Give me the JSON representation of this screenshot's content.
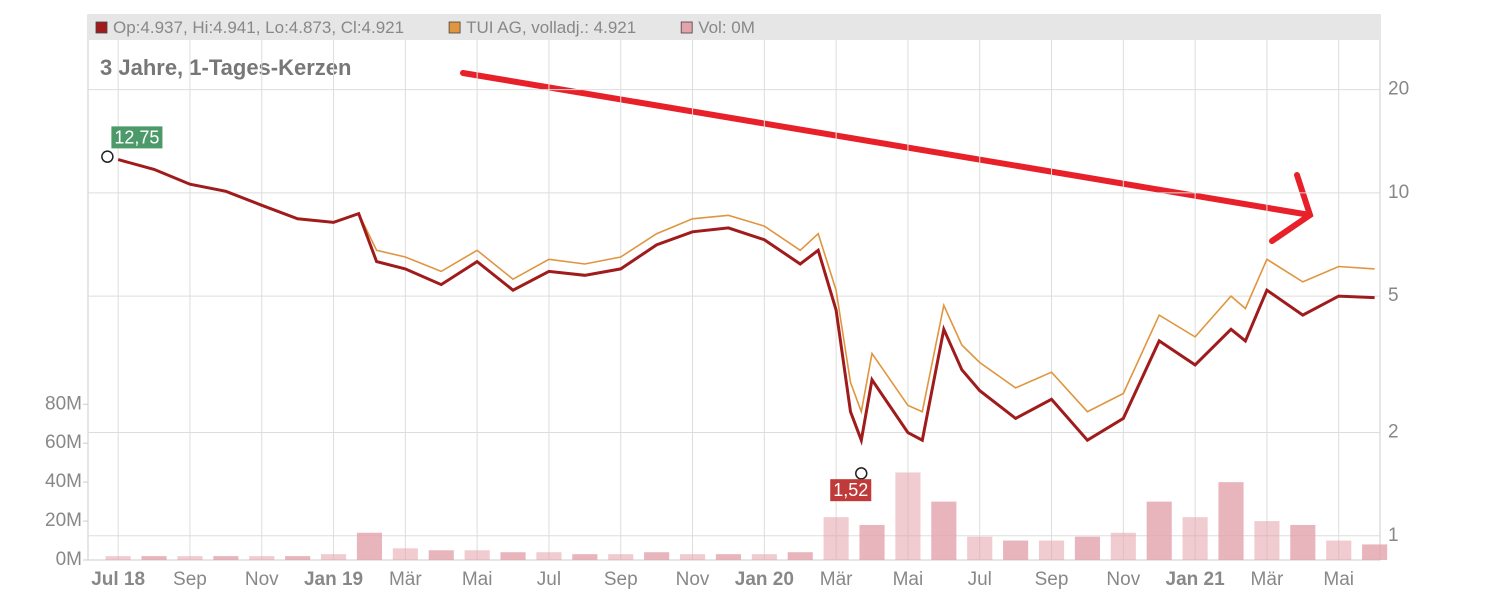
{
  "chart_data": {
    "type": "line",
    "title": "3 Jahre, 1-Tages-Kerzen",
    "log_y": true,
    "grid": true,
    "xlim": [
      -0.84,
      35.15
    ],
    "xticks": [
      {
        "value": 0,
        "label": "Jul 18"
      },
      {
        "value": 2,
        "label": "Sep"
      },
      {
        "value": 4,
        "label": "Nov"
      },
      {
        "value": 6,
        "label": "Jan 19"
      },
      {
        "value": 8,
        "label": "Mär"
      },
      {
        "value": 10,
        "label": "Mai"
      },
      {
        "value": 12,
        "label": "Jul"
      },
      {
        "value": 14,
        "label": "Sep"
      },
      {
        "value": 16,
        "label": "Nov"
      },
      {
        "value": 18,
        "label": "Jan 20"
      },
      {
        "value": 20,
        "label": "Mär"
      },
      {
        "value": 22,
        "label": "Mai"
      },
      {
        "value": 24,
        "label": "Jul"
      },
      {
        "value": 26,
        "label": "Sep"
      },
      {
        "value": 28,
        "label": "Nov"
      },
      {
        "value": 30,
        "label": "Jan 21"
      },
      {
        "value": 32,
        "label": "Mär"
      },
      {
        "value": 34,
        "label": "Mai"
      }
    ],
    "ylim": [
      0.85,
      33
    ],
    "yticks": [
      1,
      2,
      5,
      10,
      20
    ],
    "y2lim": [
      0,
      280
    ],
    "y2ticks": [
      {
        "value": 0,
        "label": "0M"
      },
      {
        "value": 20,
        "label": "20M"
      },
      {
        "value": 40,
        "label": "40M"
      },
      {
        "value": 60,
        "label": "60M"
      },
      {
        "value": 80,
        "label": "80M"
      }
    ],
    "series": [
      {
        "name": "Op:4.937, Hi:4.941, Lo:4.873, Cl:4.921",
        "color": "#a01c1c",
        "x": [
          0,
          1,
          2,
          3,
          4,
          5,
          6,
          6.7,
          7.2,
          8,
          9,
          10,
          11,
          12,
          13,
          14,
          15,
          16,
          17,
          18,
          19,
          19.5,
          20,
          20.4,
          20.7,
          21,
          22,
          22.4,
          23,
          23.5,
          24,
          25,
          26,
          27,
          28,
          29,
          30,
          31,
          31.4,
          32,
          33,
          34,
          35
        ],
        "values": [
          12.5,
          11.7,
          10.6,
          10.1,
          9.2,
          8.4,
          8.2,
          8.7,
          6.3,
          6.0,
          5.4,
          6.3,
          5.2,
          5.9,
          5.75,
          6.0,
          7.05,
          7.7,
          7.9,
          7.3,
          6.2,
          6.8,
          4.55,
          2.3,
          1.9,
          2.85,
          2.0,
          1.9,
          4.0,
          3.05,
          2.65,
          2.2,
          2.5,
          1.9,
          2.2,
          3.7,
          3.15,
          4.0,
          3.7,
          5.2,
          4.4,
          5.0,
          4.95
        ]
      },
      {
        "name": "TUI AG, volladj.: 4.921",
        "color": "#e0953f",
        "x": [
          0,
          1,
          2,
          3,
          4,
          5,
          6,
          6.7,
          7.2,
          8,
          9,
          10,
          11,
          12,
          13,
          14,
          15,
          16,
          17,
          18,
          19,
          19.5,
          20,
          20.4,
          20.7,
          21,
          22,
          22.4,
          23,
          23.5,
          24,
          25,
          26,
          27,
          28,
          29,
          30,
          31,
          31.4,
          32,
          33,
          34,
          35
        ],
        "values": [
          12.5,
          11.7,
          10.6,
          10.1,
          9.2,
          8.4,
          8.2,
          8.7,
          6.8,
          6.5,
          5.9,
          6.8,
          5.6,
          6.4,
          6.2,
          6.5,
          7.6,
          8.4,
          8.6,
          8.0,
          6.8,
          7.6,
          5.2,
          2.8,
          2.3,
          3.4,
          2.4,
          2.3,
          4.7,
          3.6,
          3.2,
          2.7,
          3.0,
          2.3,
          2.6,
          4.4,
          3.8,
          5.0,
          4.6,
          6.4,
          5.5,
          6.1,
          6.0
        ]
      },
      {
        "name": "Vol: 0M",
        "color": "#e3a3ab",
        "axis": "y2",
        "x": [
          0,
          1,
          2,
          3,
          4,
          5,
          6,
          7,
          8,
          9,
          10,
          11,
          12,
          13,
          14,
          15,
          16,
          17,
          18,
          19,
          20,
          21,
          22,
          23,
          24,
          25,
          26,
          27,
          28,
          29,
          30,
          31,
          32,
          33,
          34,
          35
        ],
        "values": [
          2,
          2,
          2,
          2,
          2,
          2,
          3,
          14,
          6,
          5,
          5,
          4,
          4,
          3,
          3,
          4,
          3,
          3,
          3,
          4,
          22,
          18,
          45,
          30,
          12,
          10,
          10,
          12,
          14,
          30,
          22,
          40,
          20,
          18,
          10,
          8
        ]
      }
    ],
    "annotations": [
      {
        "text": "12,75",
        "x": -0.3,
        "y": 12.75,
        "color": "#4c9a6a"
      },
      {
        "text": "1,52",
        "x": 20.7,
        "y": 1.52,
        "color": "#c03a3a"
      }
    ]
  }
}
